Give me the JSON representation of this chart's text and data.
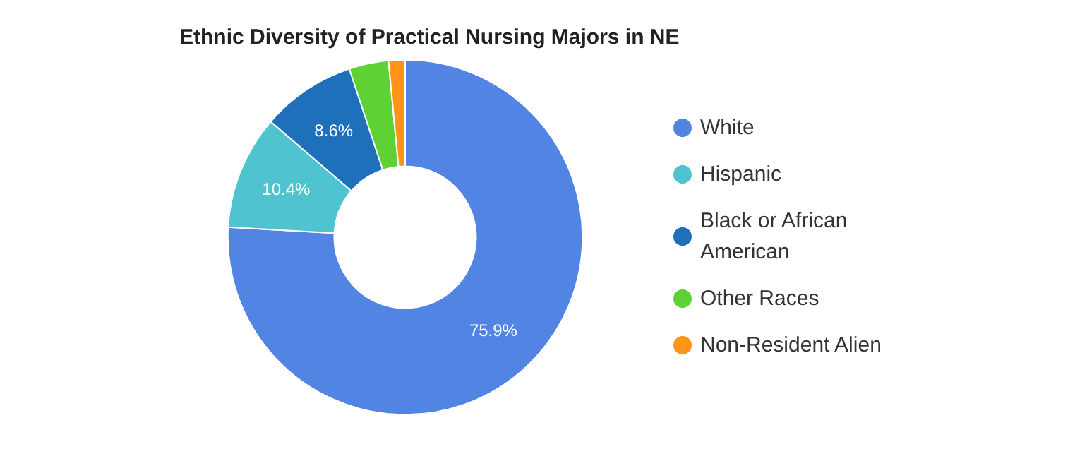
{
  "chart_data": {
    "type": "donut",
    "title": "Ethnic Diversity of Practical Nursing Majors in NE",
    "categories": [
      "White",
      "Hispanic",
      "Black or African American",
      "Other Races",
      "Non-Resident Alien"
    ],
    "values": [
      75.9,
      10.4,
      8.6,
      3.6,
      1.5
    ],
    "colors": [
      "#5284e3",
      "#4fc4d0",
      "#1f70bb",
      "#5ed235",
      "#ff9416"
    ],
    "value_labels": [
      "75.9%",
      "10.4%",
      "8.6%",
      null,
      null
    ],
    "legend": "right"
  }
}
